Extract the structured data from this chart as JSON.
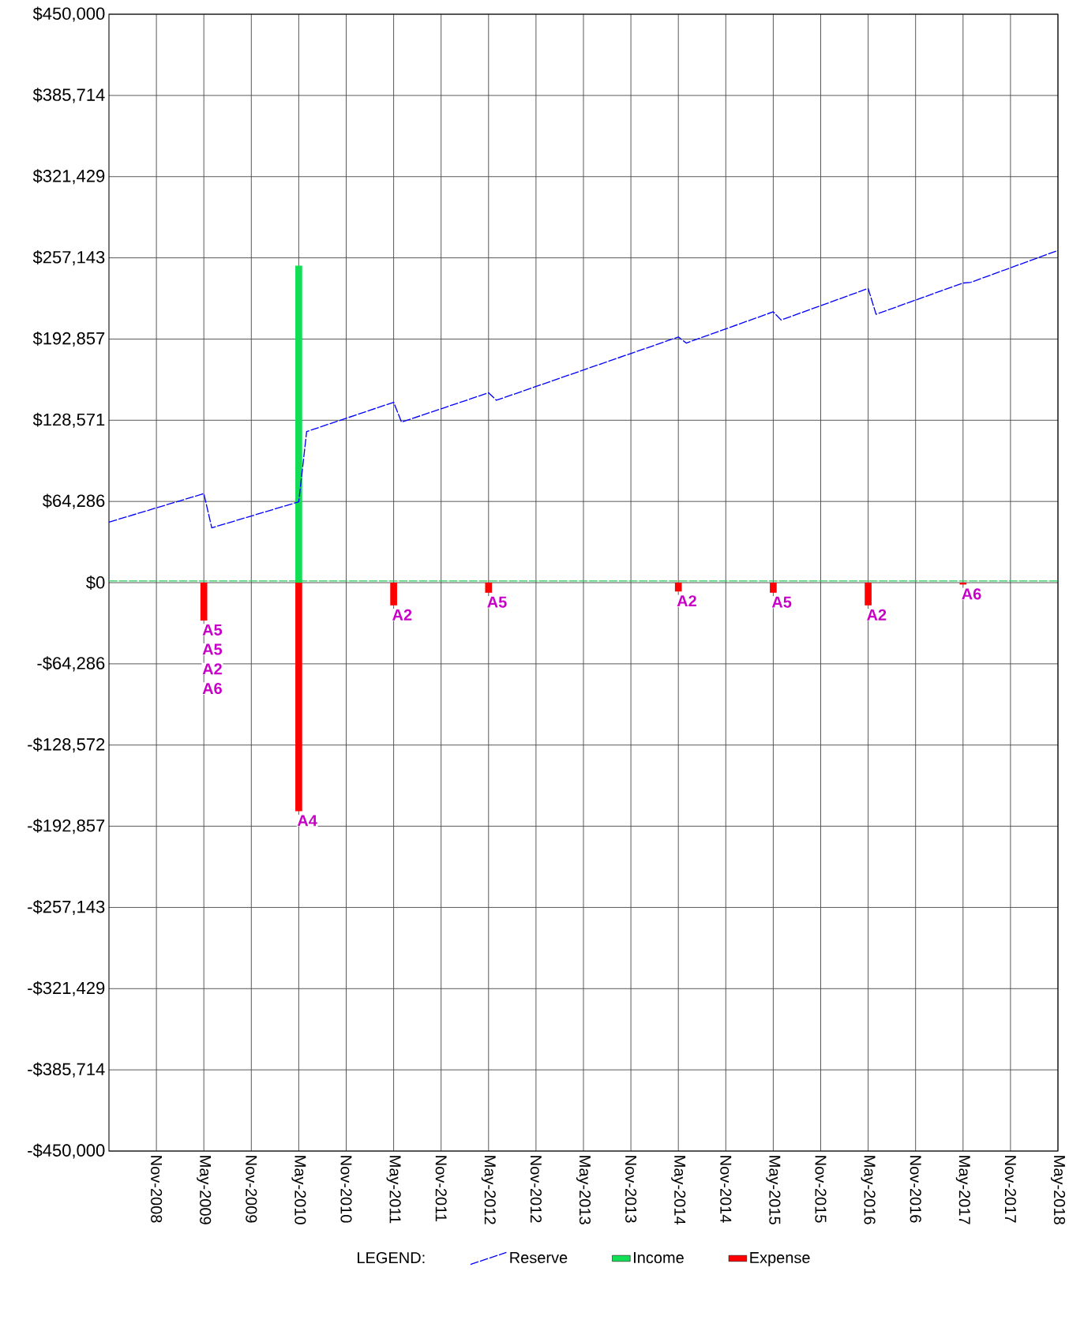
{
  "chart_data": {
    "type": "line",
    "xlim": [
      "2008-05",
      "2018-05"
    ],
    "xticks": [
      {
        "value": "2008-11",
        "label": "Nov-2008"
      },
      {
        "value": "2009-05",
        "label": "May-2009"
      },
      {
        "value": "2009-11",
        "label": "Nov-2009"
      },
      {
        "value": "2010-05",
        "label": "May-2010"
      },
      {
        "value": "2010-11",
        "label": "Nov-2010"
      },
      {
        "value": "2011-05",
        "label": "May-2011"
      },
      {
        "value": "2011-11",
        "label": "Nov-2011"
      },
      {
        "value": "2012-05",
        "label": "May-2012"
      },
      {
        "value": "2012-11",
        "label": "Nov-2012"
      },
      {
        "value": "2013-05",
        "label": "May-2013"
      },
      {
        "value": "2013-11",
        "label": "Nov-2013"
      },
      {
        "value": "2014-05",
        "label": "May-2014"
      },
      {
        "value": "2014-11",
        "label": "Nov-2014"
      },
      {
        "value": "2015-05",
        "label": "May-2015"
      },
      {
        "value": "2015-11",
        "label": "Nov-2015"
      },
      {
        "value": "2016-05",
        "label": "May-2016"
      },
      {
        "value": "2016-11",
        "label": "Nov-2016"
      },
      {
        "value": "2017-05",
        "label": "May-2017"
      },
      {
        "value": "2017-11",
        "label": "Nov-2017"
      },
      {
        "value": "2018-05",
        "label": "May-2018"
      }
    ],
    "ylim": [
      -450000,
      450000
    ],
    "yticks": [
      {
        "value": -450000,
        "label": "-$450,000"
      },
      {
        "value": -385714,
        "label": "-$385,714"
      },
      {
        "value": -321429,
        "label": "-$321,429"
      },
      {
        "value": -257143,
        "label": "-$257,143"
      },
      {
        "value": -192857,
        "label": "-$192,857"
      },
      {
        "value": -128572,
        "label": "-$128,572"
      },
      {
        "value": -64286,
        "label": "-$64,286"
      },
      {
        "value": 0,
        "label": "$0"
      },
      {
        "value": 64286,
        "label": "$64,286"
      },
      {
        "value": 128571,
        "label": "$128,571"
      },
      {
        "value": 192857,
        "label": "$192,857"
      },
      {
        "value": 257143,
        "label": "$257,143"
      },
      {
        "value": 321429,
        "label": "$321,429"
      },
      {
        "value": 385714,
        "label": "$385,714"
      },
      {
        "value": 450000,
        "label": "$450,000"
      }
    ],
    "grid": true,
    "legend": "bottom",
    "legend_title": "LEGEND:",
    "series": [
      {
        "name": "Reserve",
        "color": "#0000ff",
        "line_style": "dashed",
        "x": [
          "2008-05",
          "2009-05",
          "2009-06",
          "2010-05",
          "2010-06",
          "2011-05",
          "2011-06",
          "2012-05",
          "2012-06",
          "2014-05",
          "2014-06",
          "2015-05",
          "2015-06",
          "2016-05",
          "2016-06",
          "2017-05",
          "2017-06",
          "2018-05"
        ],
        "values": [
          47900,
          70500,
          43400,
          64000,
          119600,
          142800,
          127100,
          150300,
          144400,
          194500,
          189700,
          214400,
          207900,
          232900,
          212500,
          237200,
          237800,
          263000
        ]
      },
      {
        "name": "Income",
        "type": "bar",
        "color": "#11dd55",
        "x": [
          "2010-05"
        ],
        "values": [
          251000
        ]
      },
      {
        "name": "Expense",
        "type": "bar",
        "color": "#ff0000",
        "x": [
          "2009-05",
          "2010-05",
          "2011-05",
          "2012-05",
          "2014-05",
          "2015-05",
          "2016-05",
          "2017-05"
        ],
        "values": [
          -30000,
          -181000,
          -18000,
          -8000,
          -7000,
          -8000,
          -18000,
          -1500
        ]
      }
    ],
    "ref_lines": [
      {
        "axis": "y",
        "value": 1300,
        "color": "#22cc55",
        "line_style": "dashed"
      }
    ],
    "annotations": [
      {
        "text": "A5",
        "x": "2009-05",
        "y": -30000
      },
      "A5",
      "A2",
      "A6",
      {
        "text": "A4",
        "x": "2010-05",
        "y": -181000
      },
      {
        "text": "A2",
        "x": "2011-05",
        "y": -18000
      },
      {
        "text": "A5",
        "x": "2012-05",
        "y": -8000
      },
      {
        "text": "A2",
        "x": "2014-05",
        "y": -7000
      },
      {
        "text": "A5",
        "x": "2015-05",
        "y": -8000
      },
      {
        "text": "A2",
        "x": "2016-05",
        "y": -18000
      },
      {
        "text": "A6",
        "x": "2017-05",
        "y": -1500
      }
    ]
  }
}
